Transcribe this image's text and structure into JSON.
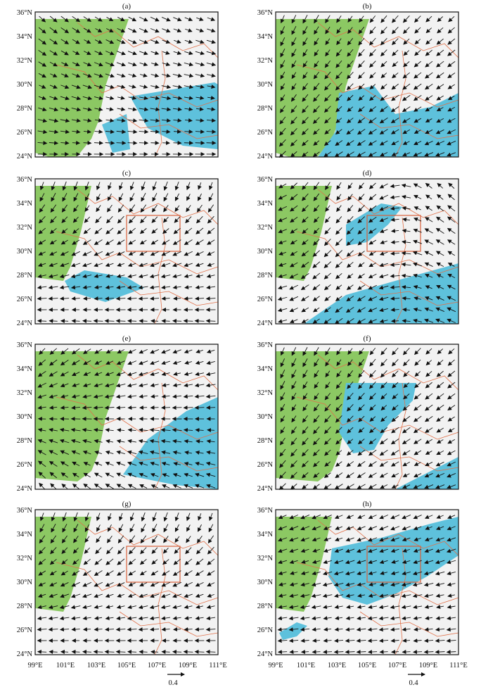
{
  "figure": {
    "axes": {
      "lat_ticks": [
        "24°N",
        "26°N",
        "28°N",
        "30°N",
        "32°N",
        "34°N",
        "36°N"
      ],
      "lon_ticks": [
        "99°E",
        "101°E",
        "103°E",
        "105°E",
        "107°E",
        "109°E",
        "111°E"
      ],
      "lat_range": [
        24,
        36
      ],
      "lon_range": [
        99,
        111
      ]
    },
    "reference_vector": {
      "label": "0.4",
      "magnitude": 0.4
    },
    "colors": {
      "plateau_mask": "#8cc863",
      "significant": "#5ec1dc",
      "boundaries": "#e0714a",
      "study_box": "#d9603a",
      "vectors": "#111111"
    },
    "study_region": {
      "lon": [
        105,
        108.5
      ],
      "lat": [
        30,
        33
      ]
    },
    "panels": [
      {
        "id": "a",
        "label": "(a)",
        "show_box": false,
        "flow": "east-south"
      },
      {
        "id": "b",
        "label": "(b)",
        "show_box": false,
        "flow": "south-west"
      },
      {
        "id": "c",
        "label": "(c)",
        "show_box": true,
        "flow": "south-west-low"
      },
      {
        "id": "d",
        "label": "(d)",
        "show_box": true,
        "flow": "west-vortex"
      },
      {
        "id": "e",
        "label": "(e)",
        "show_box": false,
        "flow": "east-northeast"
      },
      {
        "id": "f",
        "label": "(f)",
        "show_box": false,
        "flow": "south-west"
      },
      {
        "id": "g",
        "label": "(g)",
        "show_box": true,
        "flow": "south-west-low"
      },
      {
        "id": "h",
        "label": "(h)",
        "show_box": true,
        "flow": "west-southwest"
      }
    ]
  }
}
